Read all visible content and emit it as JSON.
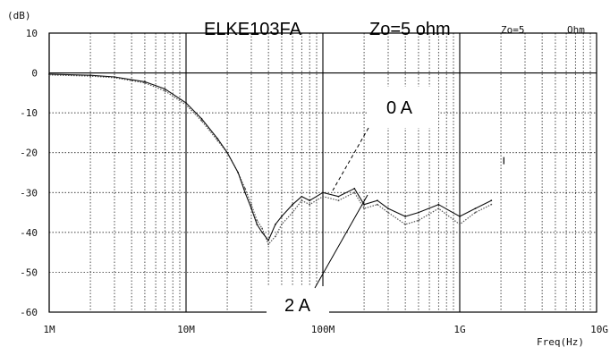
{
  "chart_data": {
    "type": "line",
    "title": "ELKE103FA",
    "subtitle": "Zo=5 ohm",
    "instrument_ref": "Zo=5",
    "instrument_unit": "Ohm",
    "ylabel": "(dB)",
    "xlabel": "Freq(Hz)",
    "xscale": "log",
    "xlim": [
      1000000,
      10000000000
    ],
    "ylim": [
      -60,
      10
    ],
    "grid": true,
    "x_ticks": [
      {
        "value": 1000000,
        "label": "1M"
      },
      {
        "value": 10000000,
        "label": "10M"
      },
      {
        "value": 100000000,
        "label": "100M"
      },
      {
        "value": 1000000000,
        "label": "1G"
      },
      {
        "value": 10000000000,
        "label": "10G"
      }
    ],
    "y_ticks": [
      10,
      0,
      -10,
      -20,
      -30,
      -40,
      -50,
      -60
    ],
    "y_tick_labels": [
      "10",
      "0",
      "-10",
      "-20",
      "-30",
      "-40",
      "-50",
      "-60"
    ],
    "series": [
      {
        "name": "0 A",
        "style": "dotted",
        "color": "#555555",
        "x": [
          1000000,
          2000000,
          3000000,
          5000000,
          7000000,
          10000000,
          13000000,
          17000000,
          20000000,
          24000000,
          27000000,
          30000000,
          33000000,
          36000000,
          40000000,
          45000000,
          50000000,
          60000000,
          70000000,
          80000000,
          100000000,
          130000000,
          170000000,
          200000000,
          250000000,
          300000000,
          400000000,
          500000000,
          700000000,
          1000000000,
          1300000000,
          1700000000
        ],
        "y": [
          -0.5,
          -0.8,
          -1.2,
          -2.5,
          -4.5,
          -8,
          -12,
          -17,
          -20,
          -25,
          -29,
          -33,
          -37,
          -39,
          -43,
          -41,
          -38,
          -35,
          -32,
          -33,
          -31,
          -32,
          -30,
          -34,
          -33,
          -35,
          -38,
          -37,
          -34,
          -38,
          -35,
          -33
        ]
      },
      {
        "name": "2 A",
        "style": "solid",
        "color": "#111111",
        "x": [
          1000000,
          2000000,
          3000000,
          5000000,
          7000000,
          10000000,
          13000000,
          17000000,
          20000000,
          24000000,
          27000000,
          30000000,
          33000000,
          36000000,
          40000000,
          45000000,
          50000000,
          60000000,
          70000000,
          80000000,
          100000000,
          130000000,
          170000000,
          200000000,
          250000000,
          300000000,
          400000000,
          500000000,
          700000000,
          1000000000,
          1300000000,
          1700000000
        ],
        "y": [
          -0.3,
          -0.6,
          -1,
          -2.2,
          -4,
          -7.5,
          -11.5,
          -16.5,
          -20,
          -25,
          -30,
          -34,
          -38,
          -40,
          -42,
          -38,
          -36,
          -33,
          -31,
          -32,
          -30,
          -31,
          -29,
          -33,
          -32,
          -34,
          -36,
          -35,
          -33,
          -36,
          -34,
          -32
        ]
      }
    ],
    "annotations": [
      {
        "text": "0 A",
        "points_to": {
          "x": 120000000,
          "y": -30
        }
      },
      {
        "text": "2 A",
        "points_to": {
          "x": 250000000,
          "y": -31
        }
      }
    ],
    "stray_mark": {
      "x": 2100000000,
      "y": -22
    }
  }
}
